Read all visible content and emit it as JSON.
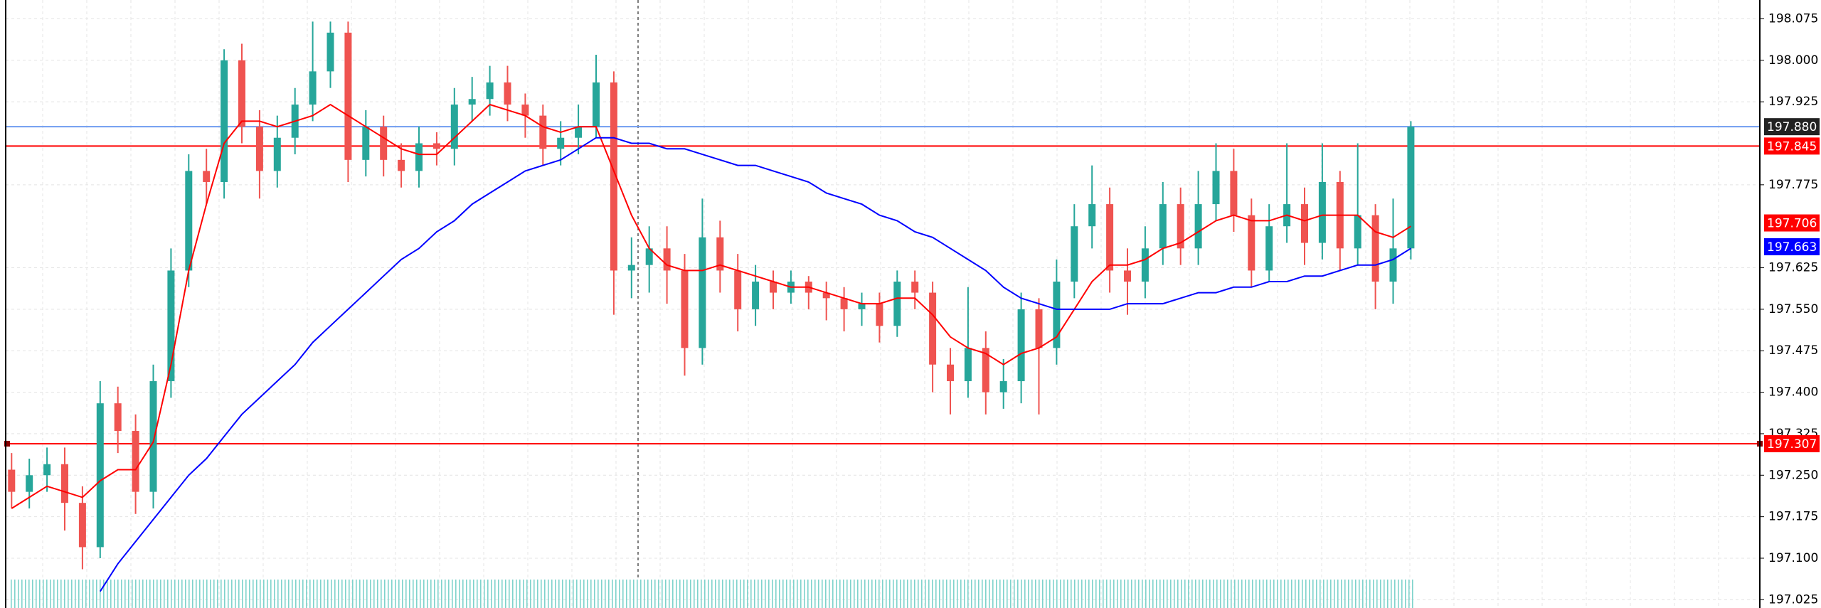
{
  "chart_data": {
    "type": "candlestick",
    "up_color": "#26a69a",
    "down_color": "#ef5350",
    "grid": true,
    "ylim": [
      197.01,
      198.109
    ],
    "yticks": [
      198.075,
      {
        "value": 198,
        "label": "198.000"
      },
      197.925,
      197.775,
      197.625,
      {
        "value": 197.55,
        "label": "197.550"
      },
      197.475,
      {
        "value": 197.4,
        "label": "197.400"
      },
      197.325,
      {
        "value": 197.25,
        "label": "197.250"
      },
      197.175,
      {
        "value": 197.1,
        "label": "197.100"
      },
      197.025
    ],
    "open": [
      197.26,
      197.22,
      197.25,
      197.27,
      197.2,
      197.12,
      197.38,
      197.33,
      197.22,
      197.42,
      197.62,
      197.8,
      197.78,
      198.0,
      197.88,
      197.8,
      197.86,
      197.92,
      197.98,
      198.05,
      197.82,
      197.88,
      197.82,
      197.8,
      197.85,
      197.84,
      197.92,
      197.93,
      197.96,
      197.92,
      197.9,
      197.84,
      197.86,
      197.88,
      197.96,
      197.62,
      197.63,
      197.66,
      197.62,
      197.48,
      197.68,
      197.62,
      197.55,
      197.6,
      197.58,
      197.6,
      197.58,
      197.57,
      197.55,
      197.56,
      197.52,
      197.6,
      197.58,
      197.45,
      197.42,
      197.48,
      197.4,
      197.42,
      197.55,
      197.48,
      197.6,
      197.7,
      197.74,
      197.62,
      197.6,
      197.66,
      197.74,
      197.66,
      197.74,
      197.8,
      197.72,
      197.62,
      197.7,
      197.74,
      197.67,
      197.78,
      197.66,
      197.72,
      197.6,
      197.66
    ],
    "high": [
      197.29,
      197.28,
      197.3,
      197.3,
      197.23,
      197.42,
      197.41,
      197.36,
      197.45,
      197.66,
      197.83,
      197.84,
      198.02,
      198.03,
      197.91,
      197.9,
      197.95,
      198.07,
      198.07,
      198.07,
      197.91,
      197.9,
      197.85,
      197.88,
      197.87,
      197.95,
      197.97,
      197.99,
      197.99,
      197.94,
      197.92,
      197.89,
      197.92,
      198.01,
      197.98,
      197.68,
      197.7,
      197.7,
      197.65,
      197.75,
      197.71,
      197.65,
      197.63,
      197.62,
      197.62,
      197.61,
      197.6,
      197.59,
      197.58,
      197.58,
      197.62,
      197.62,
      197.6,
      197.48,
      197.59,
      197.51,
      197.46,
      197.58,
      197.57,
      197.64,
      197.74,
      197.81,
      197.77,
      197.66,
      197.7,
      197.78,
      197.77,
      197.8,
      197.85,
      197.84,
      197.75,
      197.74,
      197.85,
      197.77,
      197.85,
      197.8,
      197.85,
      197.74,
      197.75,
      197.89
    ],
    "low": [
      197.19,
      197.19,
      197.22,
      197.15,
      197.08,
      197.1,
      197.29,
      197.18,
      197.19,
      197.39,
      197.59,
      197.74,
      197.75,
      197.85,
      197.75,
      197.77,
      197.83,
      197.89,
      197.95,
      197.78,
      197.79,
      197.79,
      197.77,
      197.77,
      197.81,
      197.81,
      197.89,
      197.9,
      197.89,
      197.86,
      197.81,
      197.81,
      197.83,
      197.86,
      197.54,
      197.57,
      197.58,
      197.56,
      197.43,
      197.45,
      197.58,
      197.51,
      197.52,
      197.55,
      197.56,
      197.55,
      197.53,
      197.51,
      197.52,
      197.49,
      197.5,
      197.55,
      197.4,
      197.36,
      197.39,
      197.36,
      197.37,
      197.38,
      197.36,
      197.45,
      197.57,
      197.66,
      197.58,
      197.54,
      197.57,
      197.63,
      197.63,
      197.63,
      197.71,
      197.69,
      197.59,
      197.6,
      197.67,
      197.63,
      197.64,
      197.62,
      197.63,
      197.55,
      197.56,
      197.64
    ],
    "close": [
      197.22,
      197.25,
      197.27,
      197.2,
      197.12,
      197.38,
      197.33,
      197.22,
      197.42,
      197.62,
      197.8,
      197.78,
      198.0,
      197.88,
      197.8,
      197.86,
      197.92,
      197.98,
      198.05,
      197.82,
      197.88,
      197.82,
      197.8,
      197.85,
      197.84,
      197.92,
      197.93,
      197.96,
      197.92,
      197.9,
      197.84,
      197.86,
      197.88,
      197.96,
      197.62,
      197.63,
      197.66,
      197.62,
      197.48,
      197.68,
      197.62,
      197.55,
      197.6,
      197.58,
      197.6,
      197.58,
      197.57,
      197.55,
      197.56,
      197.52,
      197.6,
      197.58,
      197.45,
      197.42,
      197.48,
      197.4,
      197.42,
      197.55,
      197.48,
      197.6,
      197.7,
      197.74,
      197.62,
      197.6,
      197.66,
      197.74,
      197.66,
      197.74,
      197.8,
      197.72,
      197.62,
      197.7,
      197.74,
      197.67,
      197.78,
      197.66,
      197.72,
      197.6,
      197.66,
      197.88
    ],
    "lines": [
      {
        "color": "#ff0000",
        "values": [
          197.19,
          197.21,
          197.23,
          197.22,
          197.21,
          197.24,
          197.26,
          197.26,
          197.31,
          197.45,
          197.62,
          197.74,
          197.85,
          197.89,
          197.89,
          197.88,
          197.89,
          197.9,
          197.92,
          197.9,
          197.88,
          197.86,
          197.84,
          197.83,
          197.83,
          197.86,
          197.89,
          197.92,
          197.91,
          197.9,
          197.88,
          197.87,
          197.88,
          197.88,
          197.8,
          197.72,
          197.66,
          197.63,
          197.62,
          197.62,
          197.63,
          197.62,
          197.61,
          197.6,
          197.59,
          197.59,
          197.58,
          197.57,
          197.56,
          197.56,
          197.57,
          197.57,
          197.54,
          197.5,
          197.48,
          197.47,
          197.45,
          197.47,
          197.48,
          197.5,
          197.55,
          197.6,
          197.63,
          197.63,
          197.64,
          197.66,
          197.67,
          197.69,
          197.71,
          197.72,
          197.71,
          197.71,
          197.72,
          197.71,
          197.72,
          197.72,
          197.72,
          197.69,
          197.68,
          197.7
        ]
      },
      {
        "color": "#0000ff",
        "values": [
          null,
          null,
          null,
          null,
          null,
          197.04,
          197.09,
          197.13,
          197.17,
          197.21,
          197.25,
          197.28,
          197.32,
          197.36,
          197.39,
          197.42,
          197.45,
          197.49,
          197.52,
          197.55,
          197.58,
          197.61,
          197.64,
          197.66,
          197.69,
          197.71,
          197.74,
          197.76,
          197.78,
          197.8,
          197.81,
          197.82,
          197.84,
          197.86,
          197.86,
          197.85,
          197.85,
          197.84,
          197.84,
          197.83,
          197.82,
          197.81,
          197.81,
          197.8,
          197.79,
          197.78,
          197.76,
          197.75,
          197.74,
          197.72,
          197.71,
          197.69,
          197.68,
          197.66,
          197.64,
          197.62,
          197.59,
          197.57,
          197.56,
          197.55,
          197.55,
          197.55,
          197.55,
          197.56,
          197.56,
          197.56,
          197.57,
          197.58,
          197.58,
          197.59,
          197.59,
          197.6,
          197.6,
          197.61,
          197.61,
          197.62,
          197.63,
          197.63,
          197.64,
          197.66
        ]
      }
    ],
    "price_labels": [
      {
        "value": 197.88,
        "label": "197.880",
        "color": "#222222",
        "line_color": "#6f9cf0"
      },
      {
        "value": 197.845,
        "label": "197.845",
        "color": "#ff0000",
        "line_color": "#ff0000"
      },
      {
        "value": 197.706,
        "label": "197.706",
        "color": "#ff0000"
      },
      {
        "value": 197.663,
        "label": "197.663",
        "color": "#0000ff"
      },
      {
        "value": 197.307,
        "label": "197.307",
        "color": "#ff0000",
        "line_color": "#ff0000"
      }
    ]
  }
}
